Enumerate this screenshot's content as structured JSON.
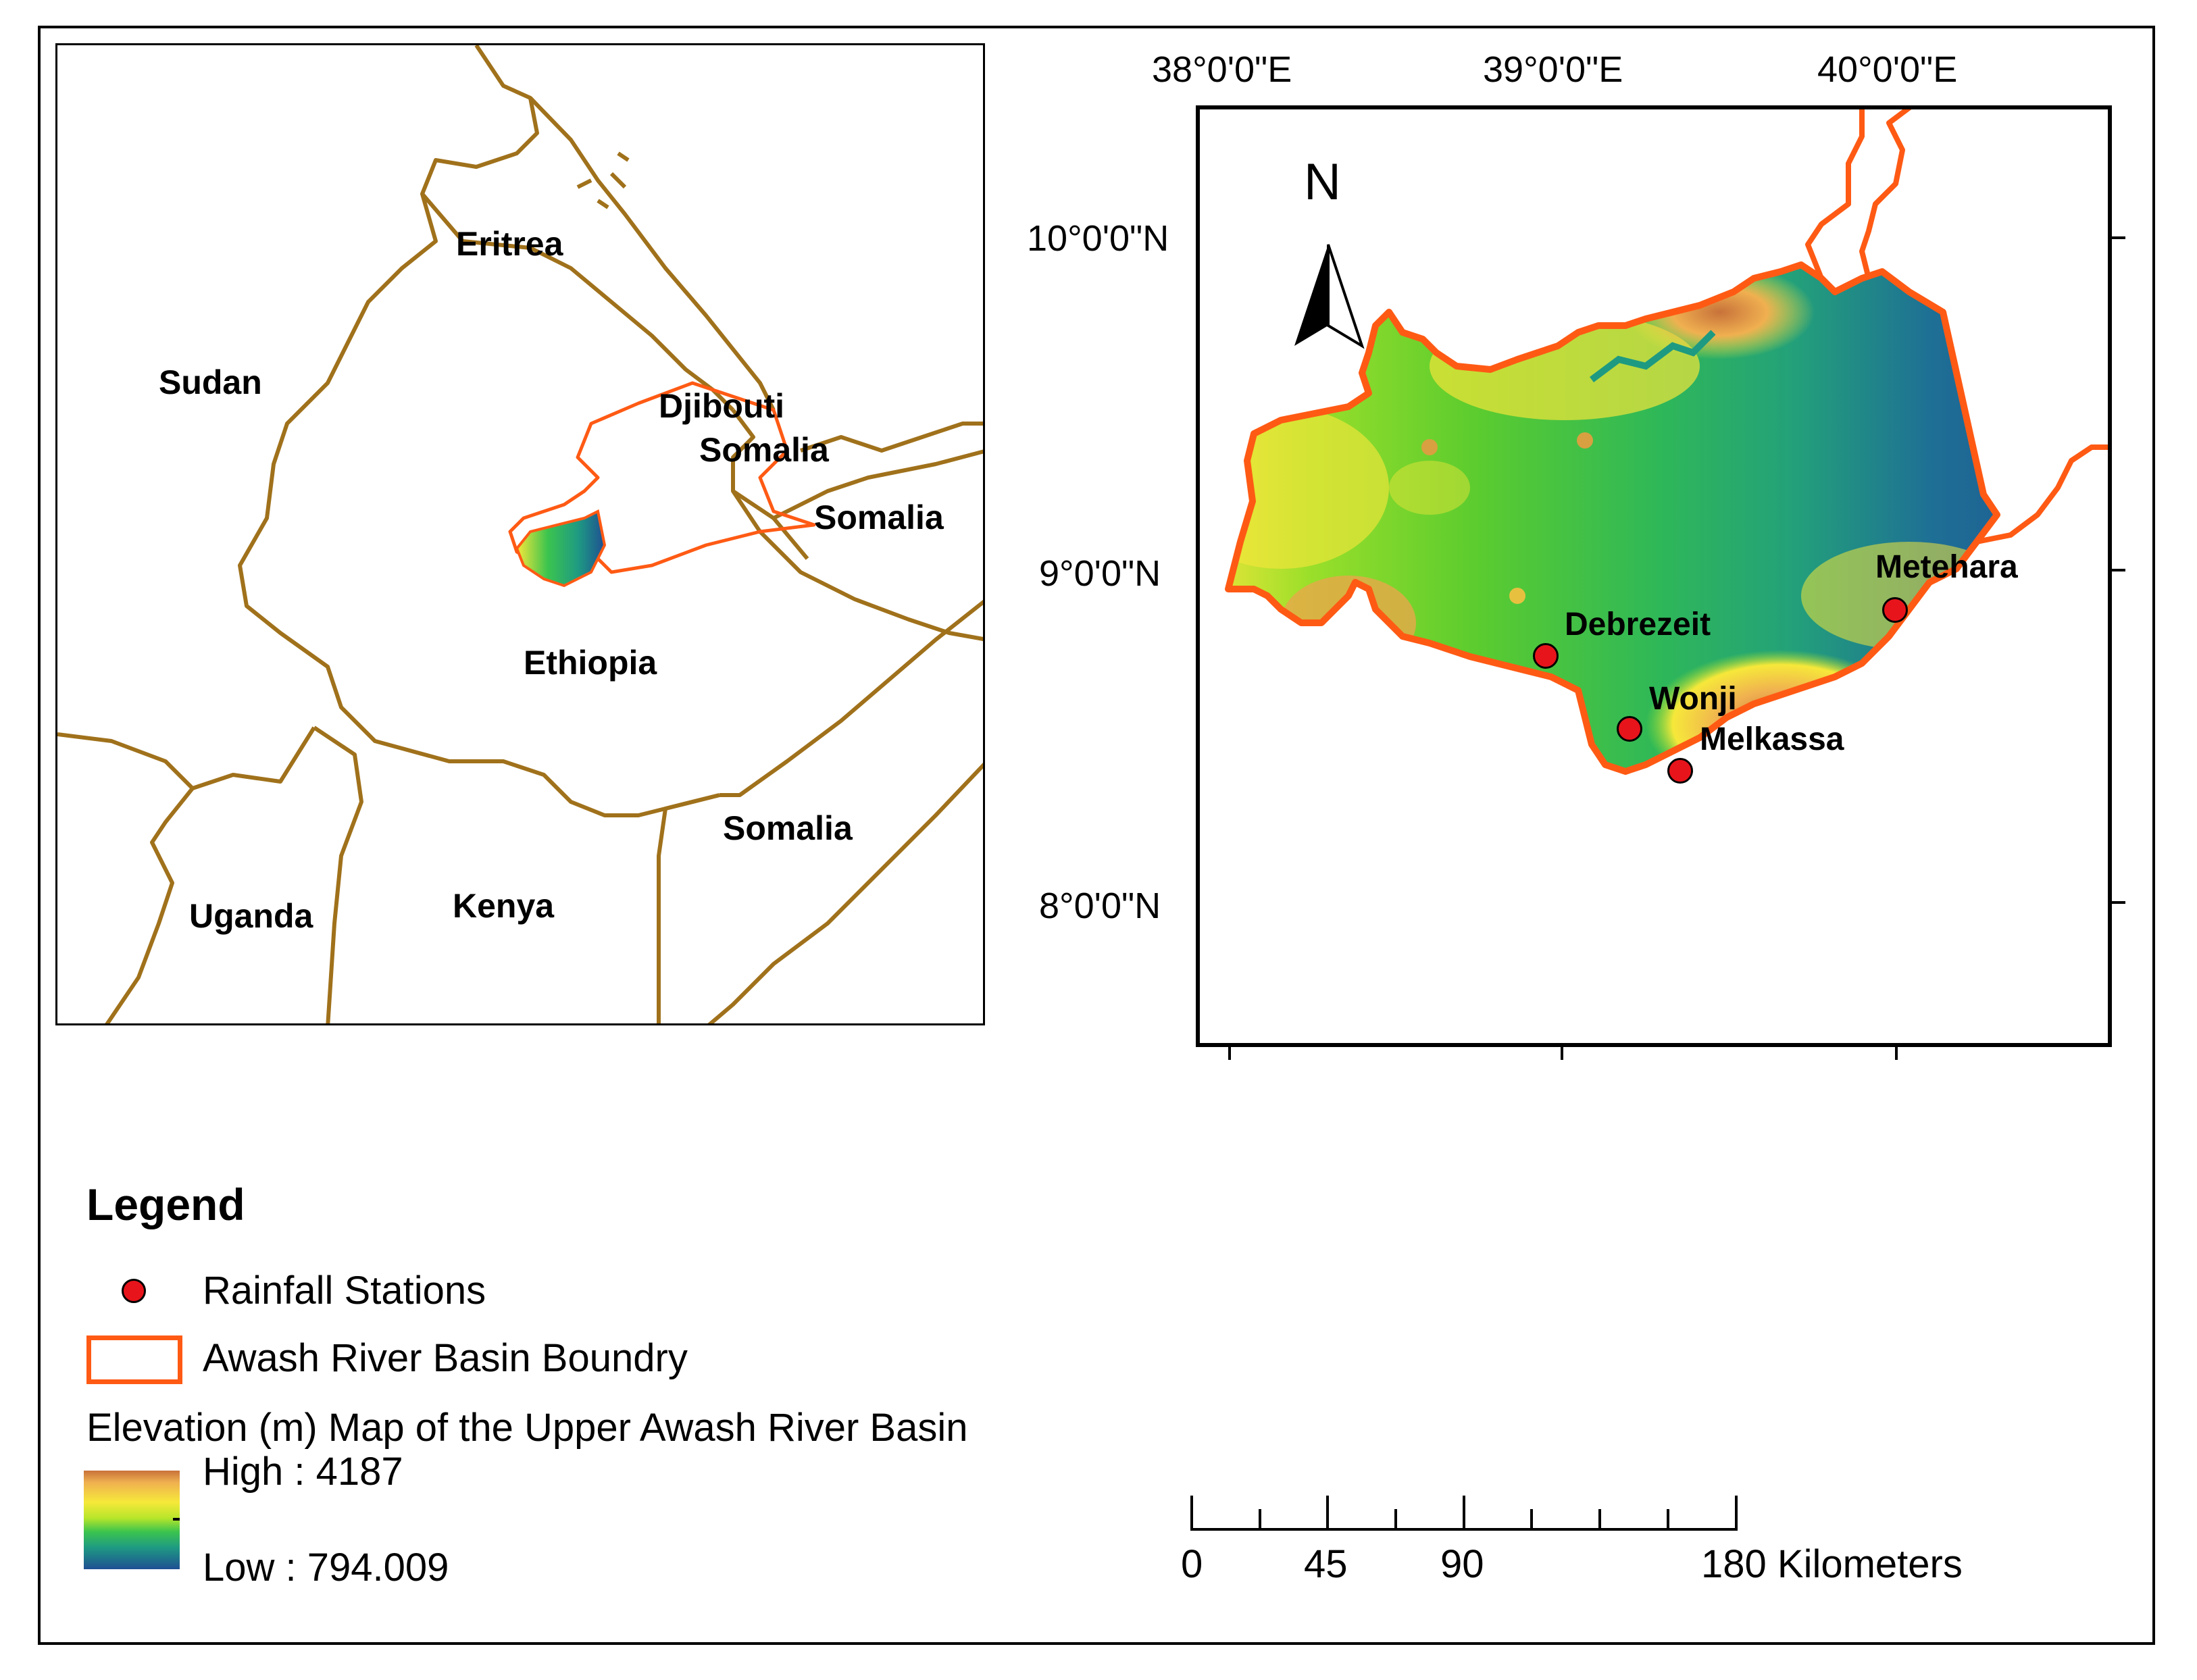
{
  "inset_map": {
    "countries": {
      "eritrea": "Eritrea",
      "sudan": "Sudan",
      "djibouti": "Djibouti",
      "somalia_north": "Somalia",
      "somalia_east": "Somalia",
      "somalia_south": "Somalia",
      "ethiopia": "Ethiopia",
      "uganda": "Uganda",
      "kenya": "Kenya"
    }
  },
  "main_map": {
    "lon_labels": [
      "38°0'0\"E",
      "39°0'0\"E",
      "40°0'0\"E"
    ],
    "lat_labels": [
      "10°0'0\"N",
      "9°0'0\"N",
      "8°0'0\"N"
    ],
    "north_arrow": "N",
    "stations": [
      {
        "name": "Metehara"
      },
      {
        "name": "Debrezeit"
      },
      {
        "name": "Wonji"
      },
      {
        "name": "Melkassa"
      }
    ]
  },
  "legend": {
    "title": "Legend",
    "stations_label": "Rainfall Stations",
    "boundary_label": "Awash River Basin Boundry",
    "elevation_title": "Elevation (m) Map of the Upper Awash River Basin",
    "high_label": "High : 4187",
    "low_label": "Low : 794.009"
  },
  "scale_bar": {
    "labels": [
      "0",
      "45",
      "90",
      "180 Kilometers"
    ]
  },
  "colors": {
    "border_brown": "#a0711b",
    "basin_orange": "#ff5a14",
    "station_red": "#e8141b"
  }
}
